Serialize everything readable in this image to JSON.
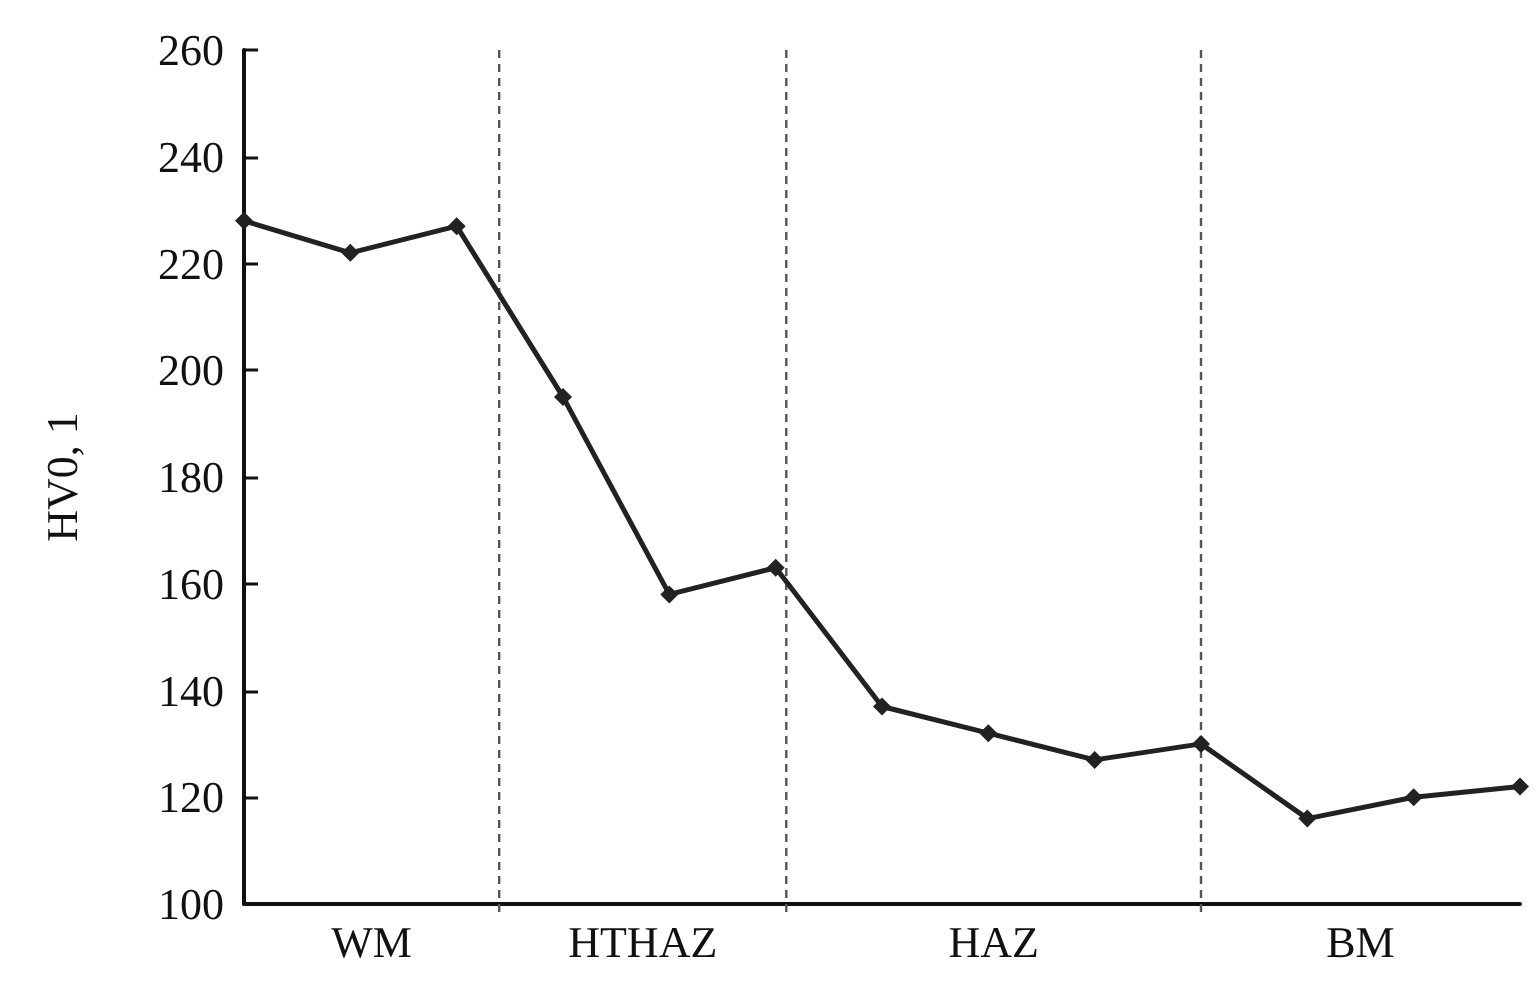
{
  "chart_data": {
    "type": "line",
    "ylabel": "HV0, 1",
    "categories": [
      null,
      null,
      null,
      null,
      null,
      null,
      null,
      null,
      null,
      null,
      null,
      null,
      null
    ],
    "series": [
      {
        "color": "#222222",
        "values": [
          228,
          222,
          227,
          195,
          158,
          163,
          137,
          132,
          127,
          130,
          116,
          120,
          122
        ]
      }
    ],
    "ylim": [
      100,
      260
    ],
    "yticks": [
      100,
      120,
      140,
      160,
      180,
      200,
      220,
      240,
      260
    ],
    "tick_labels": "y",
    "annotations": [
      "WM",
      "HTHAZ",
      "HAZ",
      "BM"
    ],
    "marker": "diamond",
    "line_style": "solid",
    "grid": false
  }
}
